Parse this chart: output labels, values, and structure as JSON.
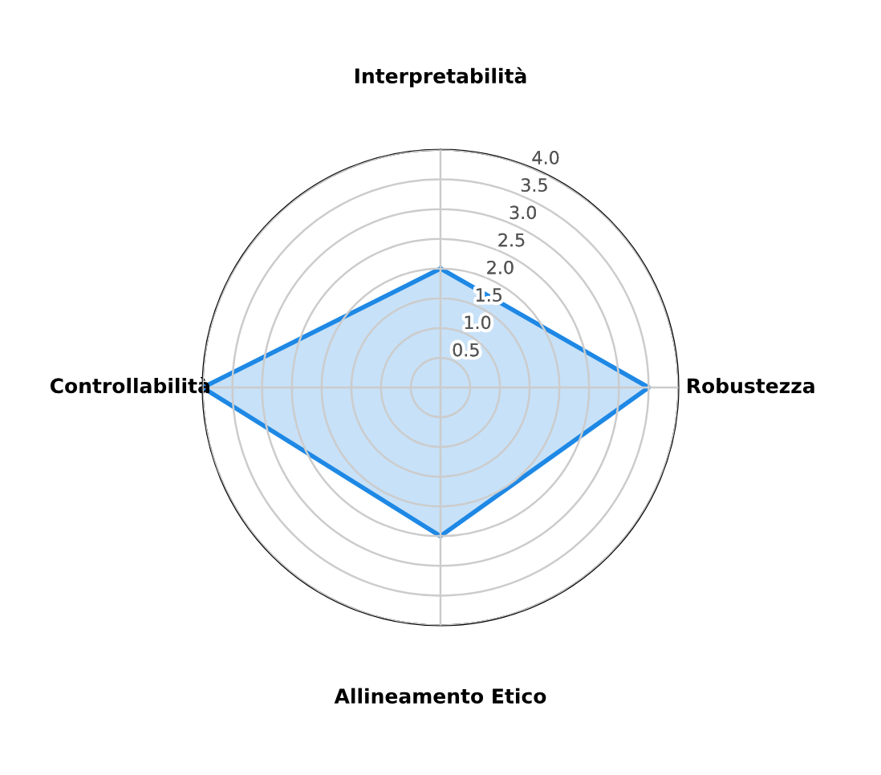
{
  "chart_data": {
    "type": "radar",
    "categories": [
      "Interpretabilità",
      "Robustezza",
      "Allineamento Etico",
      "Controllabilità"
    ],
    "series": [
      {
        "color": "#1e88e5",
        "values": [
          2.0,
          3.5,
          2.5,
          4.0
        ]
      }
    ],
    "ylim": [
      0,
      4.0
    ],
    "yticks": [
      0.5,
      {
        "value": 1,
        "label": "1.0"
      },
      1.5,
      {
        "value": 2,
        "label": "2.0"
      },
      2.5,
      {
        "value": 3,
        "label": "3.0"
      },
      3.5,
      {
        "value": 4,
        "label": "4.0"
      }
    ],
    "grid": true,
    "marker": "none",
    "line_style": "solid"
  }
}
